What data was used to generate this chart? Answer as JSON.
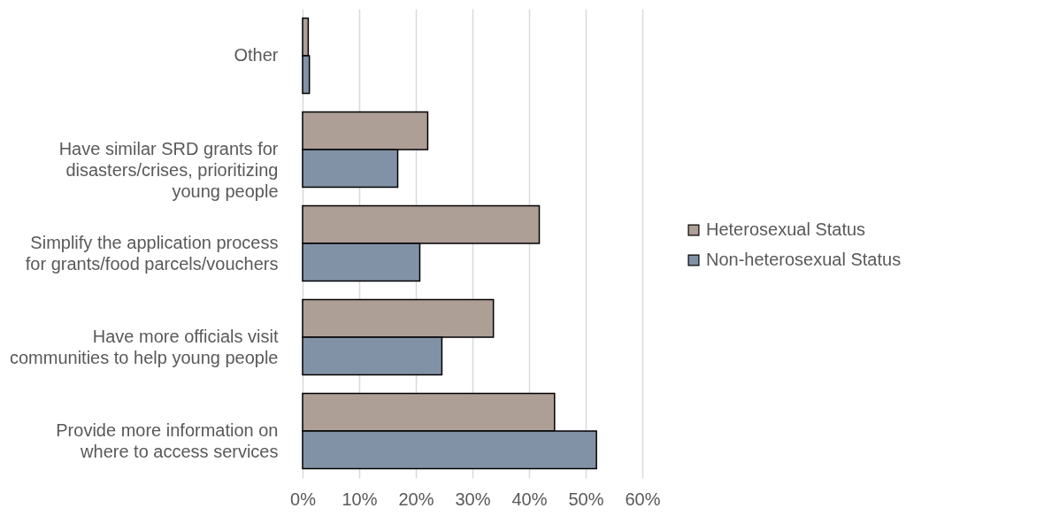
{
  "chart_data": {
    "type": "bar",
    "orientation": "horizontal",
    "categories": [
      "Other",
      "Have similar SRD grants for disasters/crises, prioritizing young people",
      "Simplify the application process for grants/food parcels/vouchers",
      "Have more officials visit communities to help young people",
      "Provide more information on where to access services"
    ],
    "series": [
      {
        "name": "Heterosexual Status",
        "color": "#ad9e96",
        "values": [
          1.0,
          22.1,
          41.8,
          33.7,
          44.5
        ]
      },
      {
        "name": "Non-heterosexual Status",
        "color": "#8292a6",
        "values": [
          1.2,
          16.8,
          20.7,
          24.6,
          51.9
        ]
      }
    ],
    "xlim": [
      0,
      60
    ],
    "xticks": [
      {
        "value": 0,
        "label": "0%"
      },
      {
        "value": 10,
        "label": "10%"
      },
      {
        "value": 20,
        "label": "20%"
      },
      {
        "value": 30,
        "label": "30%"
      },
      {
        "value": 40,
        "label": "40%"
      },
      {
        "value": 50,
        "label": "50%"
      },
      {
        "value": 60,
        "label": "60%"
      }
    ],
    "grid": "x",
    "legend": "right"
  }
}
